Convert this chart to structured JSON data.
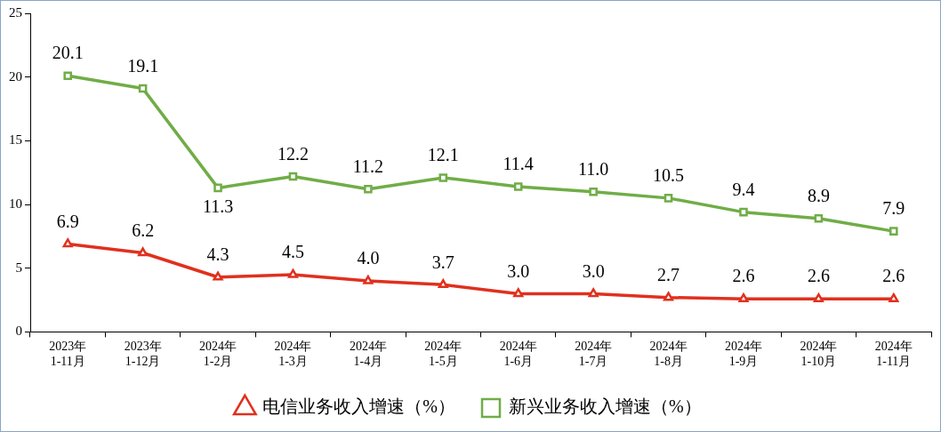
{
  "chart_data": {
    "type": "line",
    "categories": [
      "2023年\n1-11月",
      "2023年\n1-12月",
      "2024年\n1-2月",
      "2024年\n1-3月",
      "2024年\n1-4月",
      "2024年\n1-5月",
      "2024年\n1-6月",
      "2024年\n1-7月",
      "2024年\n1-8月",
      "2024年\n1-9月",
      "2024年\n1-10月",
      "2024年\n1-11月"
    ],
    "series": [
      {
        "name": "电信业务收入增速（%）",
        "color": "#e0301e",
        "marker": "triangle",
        "values": [
          6.9,
          6.2,
          4.3,
          4.5,
          4.0,
          3.7,
          3.0,
          3.0,
          2.7,
          2.6,
          2.6,
          2.6
        ],
        "value_labels": [
          "6.9",
          "6.2",
          "4.3",
          "4.5",
          "4.0",
          "3.7",
          "3.0",
          "3.0",
          "2.7",
          "2.6",
          "2.6",
          "2.6"
        ]
      },
      {
        "name": "新兴业务收入增速（%）",
        "color": "#70ad47",
        "marker": "square",
        "values": [
          20.1,
          19.1,
          11.3,
          12.2,
          11.2,
          12.1,
          11.4,
          11.0,
          10.5,
          9.4,
          8.9,
          7.9
        ],
        "value_labels": [
          "20.1",
          "19.1",
          "11.3",
          "12.2",
          "11.2",
          "12.1",
          "11.4",
          "11.0",
          "10.5",
          "9.4",
          "8.9",
          "7.9"
        ]
      }
    ],
    "ylim": [
      0,
      25
    ],
    "yticks": [
      0,
      5,
      10,
      15,
      20,
      25
    ],
    "legend": "bottom"
  }
}
